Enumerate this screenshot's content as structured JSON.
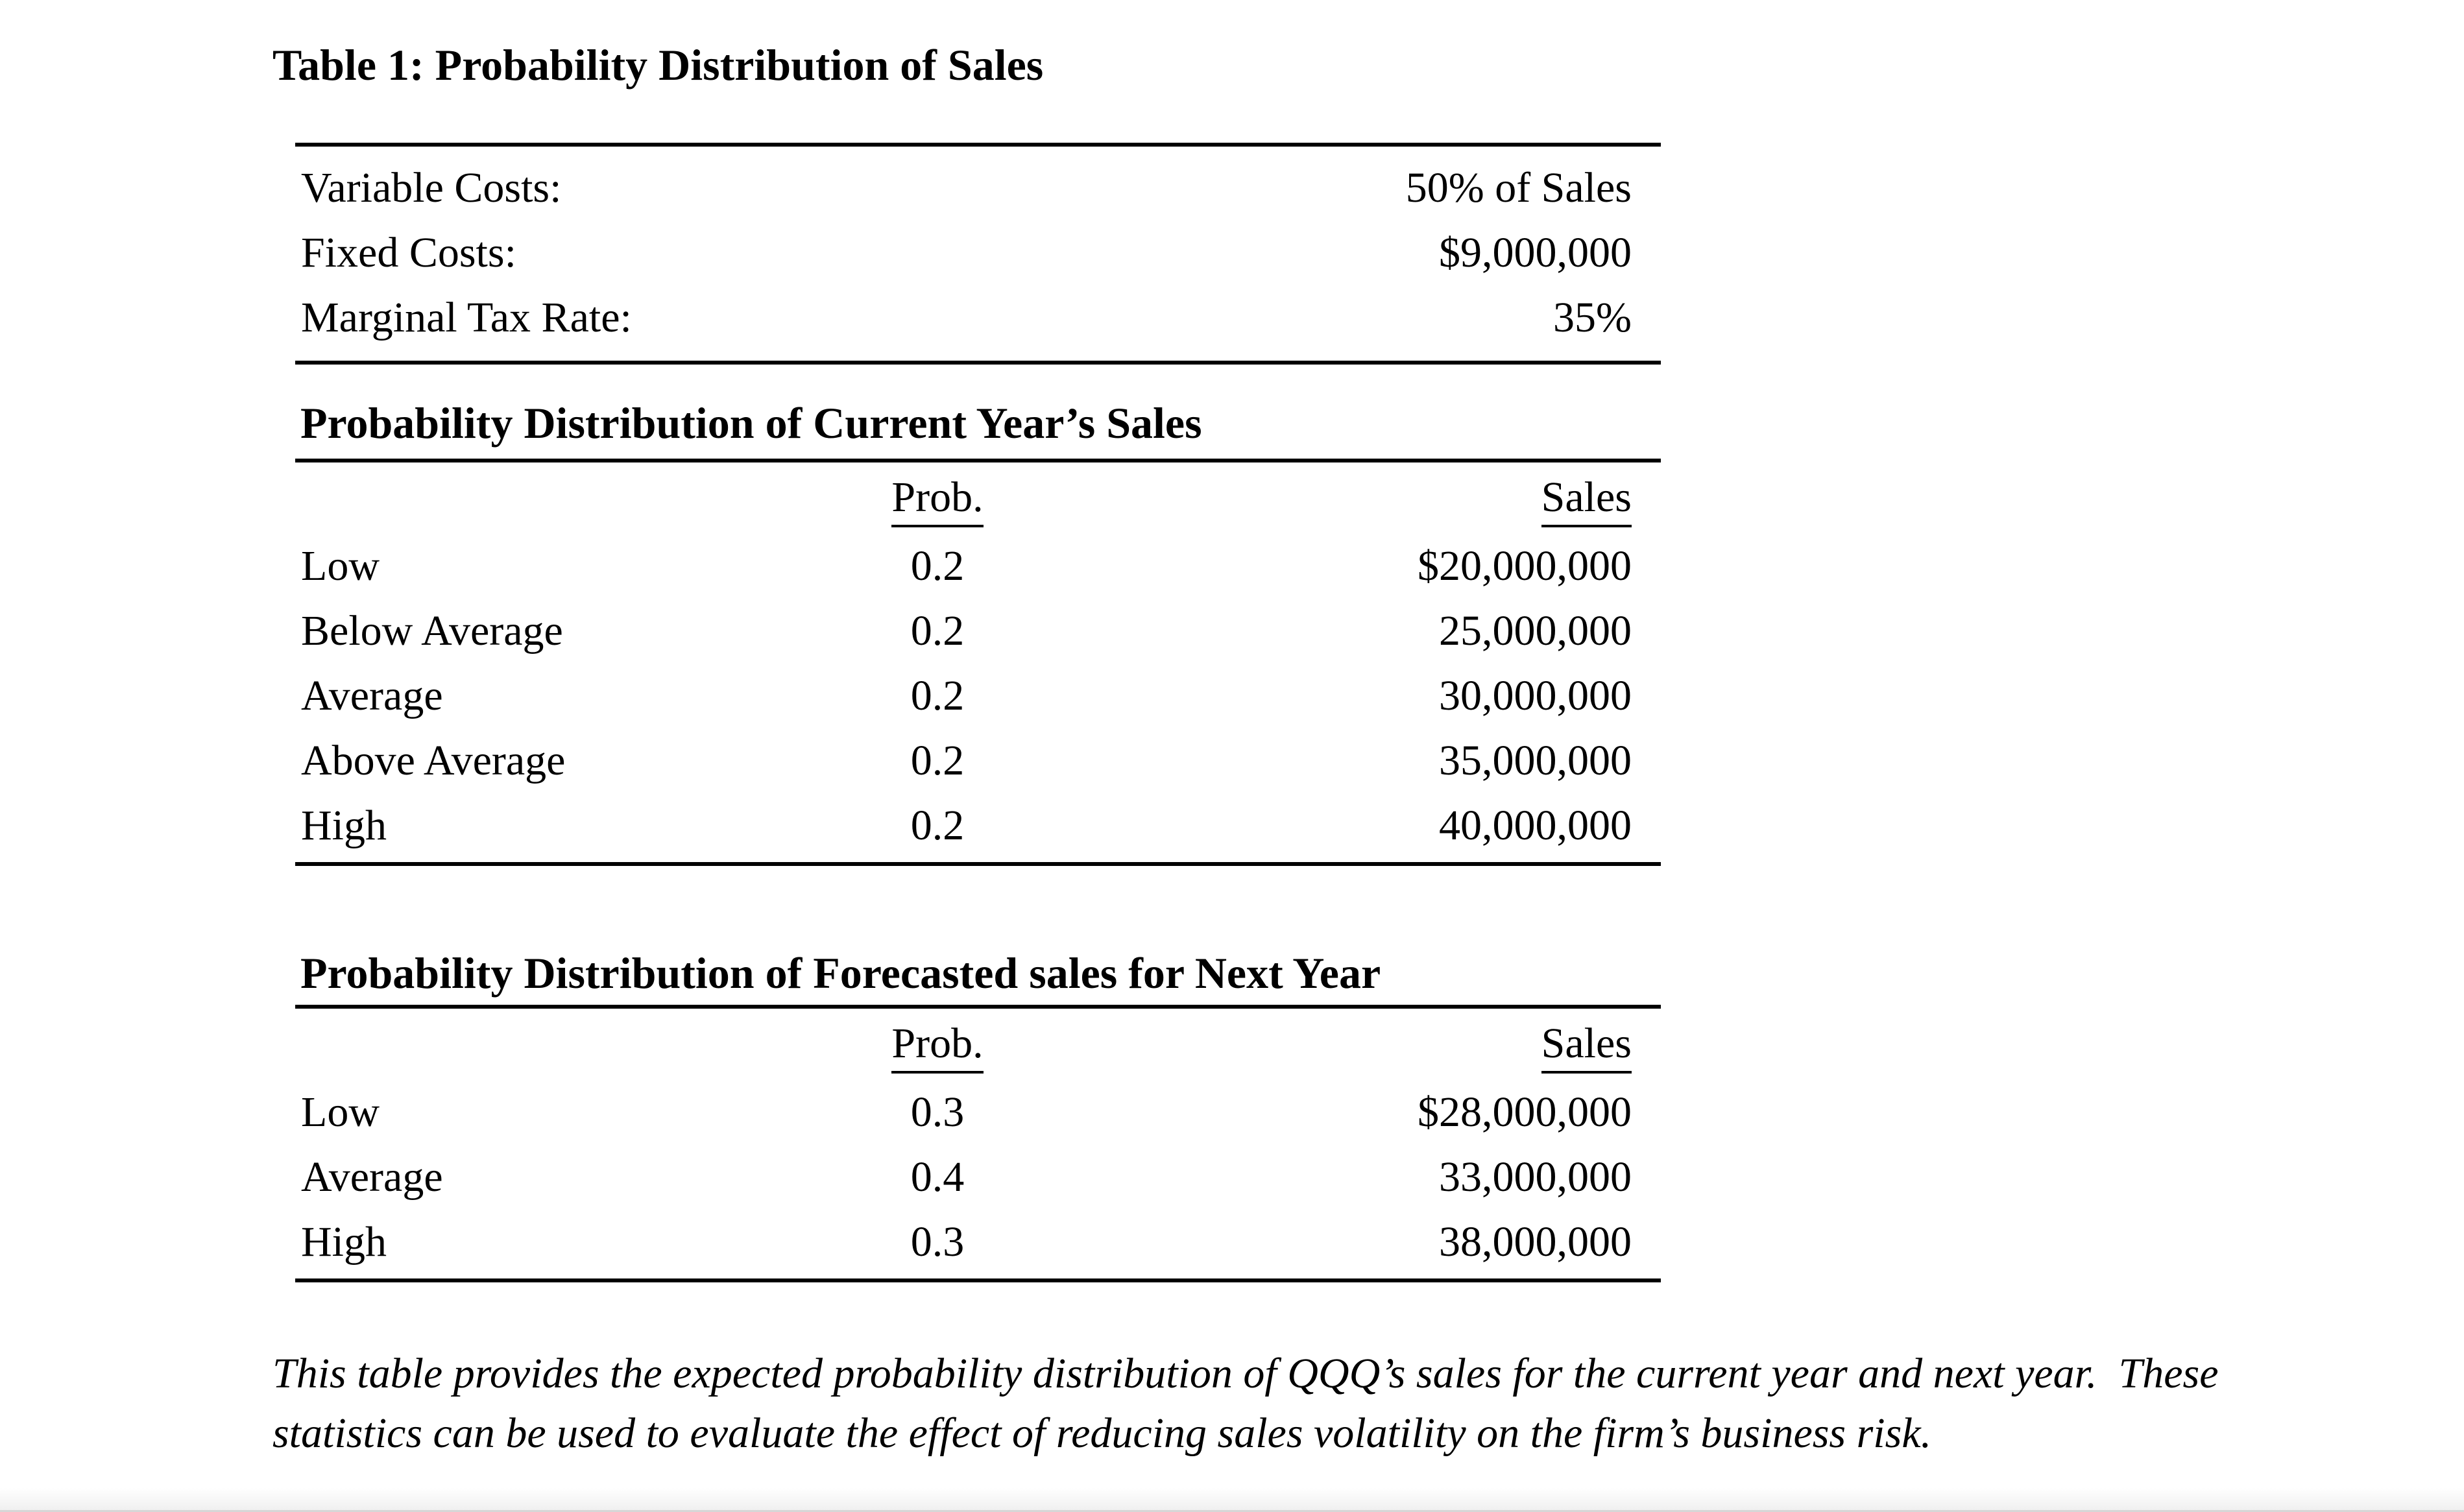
{
  "title": "Table 1: Probability Distribution of Sales",
  "parameters_table": {
    "rows": [
      {
        "label": "Variable Costs:",
        "value": "50% of Sales"
      },
      {
        "label": "Fixed Costs:",
        "value": "$9,000,000"
      },
      {
        "label": "Marginal Tax Rate:",
        "value": "35%"
      }
    ]
  },
  "current_year_table": {
    "heading": "Probability Distribution of Current Year’s Sales",
    "columns": {
      "prob": "Prob.",
      "sales": "Sales"
    },
    "rows": [
      {
        "label": "Low",
        "prob": "0.2",
        "sales": "$20,000,000"
      },
      {
        "label": "Below Average",
        "prob": "0.2",
        "sales": "25,000,000"
      },
      {
        "label": "Average",
        "prob": "0.2",
        "sales": "30,000,000"
      },
      {
        "label": "Above Average",
        "prob": "0.2",
        "sales": "35,000,000"
      },
      {
        "label": "High",
        "prob": "0.2",
        "sales": "40,000,000"
      }
    ]
  },
  "next_year_table": {
    "heading": "Probability Distribution of Forecasted sales for Next Year",
    "columns": {
      "prob": "Prob.",
      "sales": "Sales"
    },
    "rows": [
      {
        "label": "Low",
        "prob": "0.3",
        "sales": "$28,000,000"
      },
      {
        "label": "Average",
        "prob": "0.4",
        "sales": "33,000,000"
      },
      {
        "label": "High",
        "prob": "0.3",
        "sales": "38,000,000"
      }
    ]
  },
  "note": "This table provides the expected probability distribution of QQQ’s sales for the current year and next year.  These statistics can be used to evaluate the effect of reducing sales volatility on the firm’s business risk.",
  "colors": {
    "text": "#000000",
    "background": "#ffffff",
    "rule": "#000000",
    "bottom_band": "#f0f0f0"
  }
}
